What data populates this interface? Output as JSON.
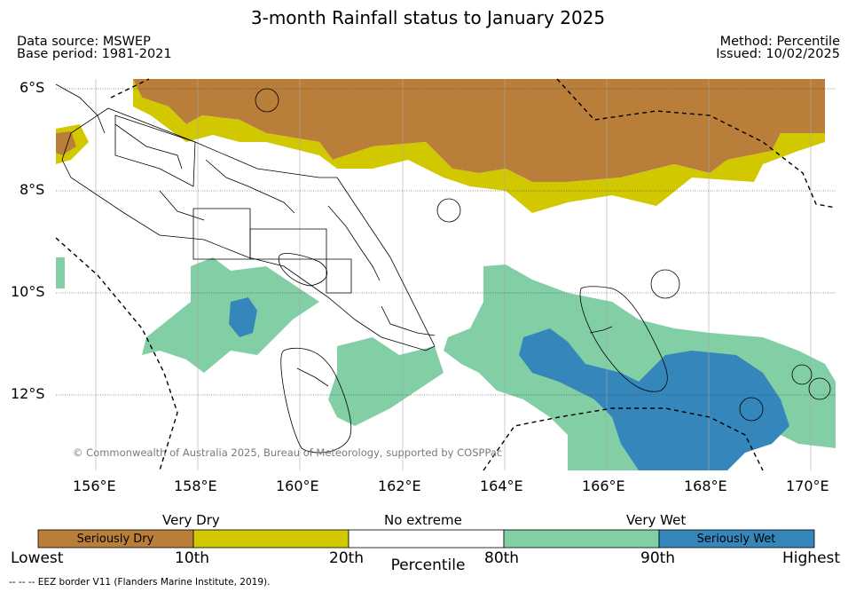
{
  "title": "3-month Rainfall status to January 2025",
  "meta": {
    "source": "Data source: MSWEP",
    "base_period": "Base period: 1981-2021",
    "method": "Method: Percentile",
    "issued": "Issued: 10/02/2025"
  },
  "map": {
    "lat_labels": [
      "6°S",
      "8°S",
      "10°S",
      "12°S"
    ],
    "lon_labels": [
      "156°E",
      "158°E",
      "160°E",
      "162°E",
      "164°E",
      "166°E",
      "168°E",
      "170°E"
    ],
    "copyright": "© Commonwealth of Australia 2025, Bureau of Meteorology, supported by COSPPac",
    "colors": {
      "seriously_dry": "#b97f3a",
      "very_dry": "#d2c800",
      "very_wet": "#82cea5",
      "seriously_wet": "#3587bb"
    }
  },
  "colorbar": {
    "group_labels": [
      "Very Dry",
      "No extreme",
      "Very Wet"
    ],
    "cell_labels": [
      "Seriously Dry",
      "",
      "",
      "",
      "Seriously Wet"
    ],
    "ticks": [
      "Lowest",
      "10th",
      "20th",
      "80th",
      "90th",
      "Highest"
    ],
    "axis_label": "Percentile"
  },
  "footnote": "--  --  -- EEZ border V11 (Flanders Marine Institute, 2019)."
}
